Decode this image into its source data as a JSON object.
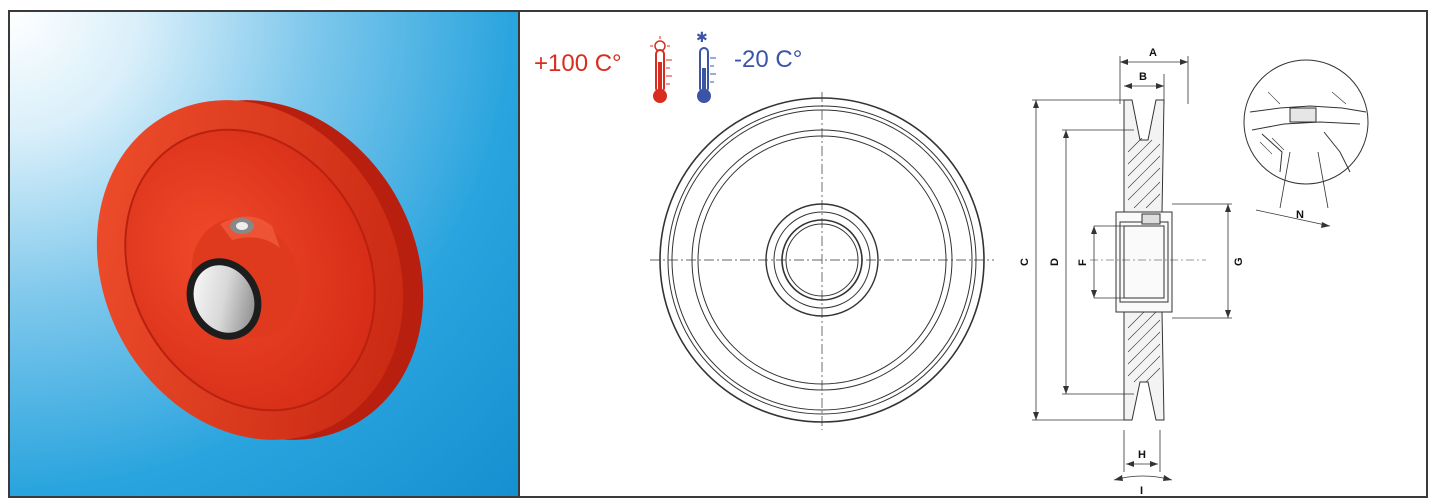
{
  "temperature": {
    "max_label": "+100 C°",
    "min_label": "-20 C°",
    "hot_color": "#d92d20",
    "cold_color": "#3b54a6"
  },
  "product": {
    "body_color": "#e8321f",
    "icon": "pulley-wheel-icon"
  },
  "dimensions": {
    "A": "A",
    "B": "B",
    "C": "C",
    "D": "D",
    "F": "F",
    "G": "G",
    "H": "H",
    "I": "I",
    "N": "N"
  }
}
